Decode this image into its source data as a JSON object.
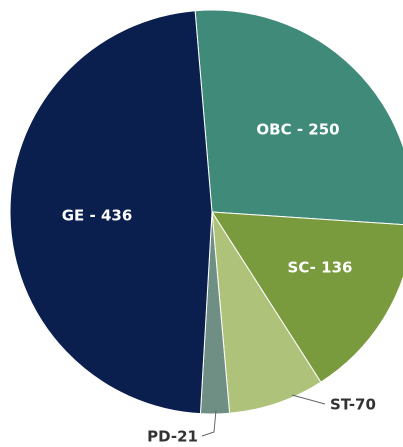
{
  "chart_data": {
    "type": "pie",
    "values": [
      250,
      136,
      70,
      21,
      436
    ],
    "value_labels": [
      "OBC - 250",
      "SC- 136",
      "ST-70",
      "PD-21",
      "GE - 436"
    ],
    "colors": [
      "#3f8a78",
      "#7a9a3e",
      "#aec27a",
      "#6f8f85",
      "#0b1f4f"
    ]
  }
}
